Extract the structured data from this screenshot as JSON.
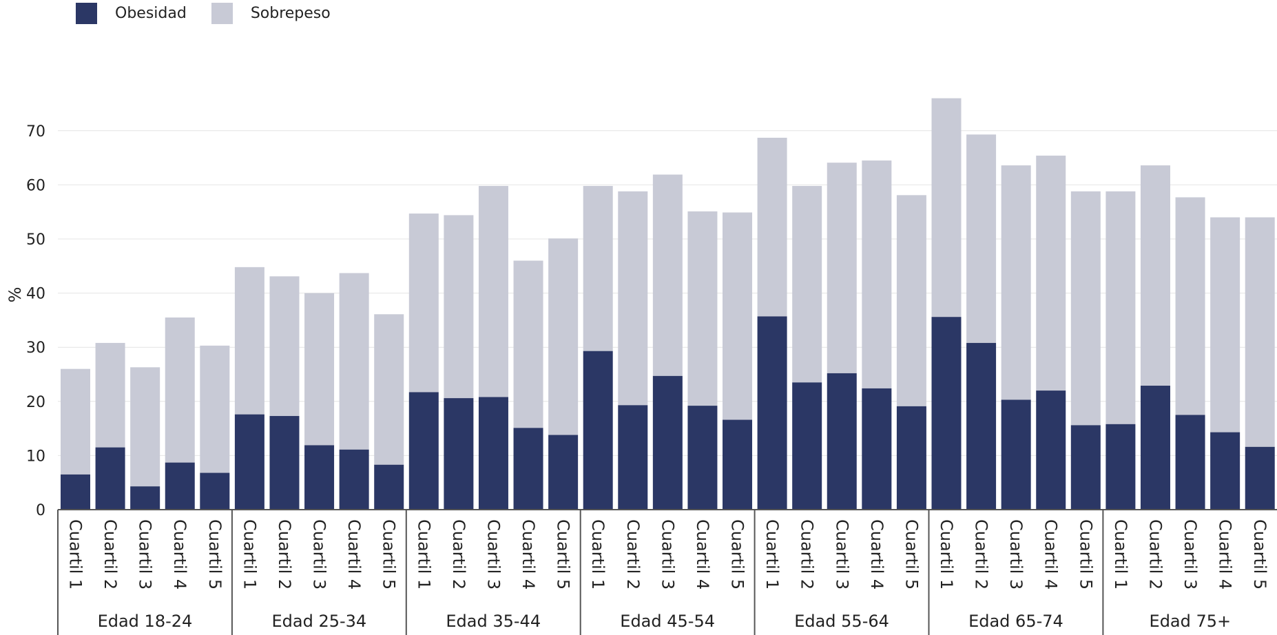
{
  "colors": {
    "obesidad": "#2b3765",
    "sobrepeso": "#c8cad6",
    "grid": "#e4e4e4",
    "axis": "#555555"
  },
  "legend": [
    {
      "label": "Obesidad",
      "color": "#2b3765"
    },
    {
      "label": "Sobrepeso",
      "color": "#c8cad6"
    }
  ],
  "chart_data": {
    "type": "bar",
    "stacked": true,
    "ylabel": "%",
    "ylim": [
      0,
      80
    ],
    "yticks": [
      0,
      10,
      20,
      30,
      40,
      50,
      60,
      70
    ],
    "grid": true,
    "legend_position": "top-left",
    "groups": [
      {
        "label": "Edad 18-24",
        "categories": [
          "Cuartil 1",
          "Cuartil 2",
          "Cuartil 3",
          "Cuartil 4",
          "Cuartil 5"
        ],
        "obesidad": [
          6.5,
          11.5,
          4.3,
          8.7,
          6.8
        ],
        "total": [
          26.0,
          30.8,
          26.3,
          35.5,
          30.3
        ]
      },
      {
        "label": "Edad 25-34",
        "categories": [
          "Cuartil 1",
          "Cuartil 2",
          "Cuartil 3",
          "Cuartil 4",
          "Cuartil 5"
        ],
        "obesidad": [
          17.6,
          17.3,
          11.9,
          11.1,
          8.3
        ],
        "total": [
          44.8,
          43.1,
          40.0,
          43.7,
          36.1
        ]
      },
      {
        "label": "Edad 35-44",
        "categories": [
          "Cuartil 1",
          "Cuartil 2",
          "Cuartil 3",
          "Cuartil 4",
          "Cuartil 5"
        ],
        "obesidad": [
          21.7,
          20.6,
          20.8,
          15.1,
          13.8
        ],
        "total": [
          54.7,
          54.4,
          59.8,
          46.0,
          50.1
        ]
      },
      {
        "label": "Edad 45-54",
        "categories": [
          "Cuartil 1",
          "Cuartil 2",
          "Cuartil 3",
          "Cuartil 4",
          "Cuartil 5"
        ],
        "obesidad": [
          29.3,
          19.3,
          24.7,
          19.2,
          16.6
        ],
        "total": [
          59.8,
          58.8,
          61.9,
          55.1,
          54.9
        ]
      },
      {
        "label": "Edad 55-64",
        "categories": [
          "Cuartil 1",
          "Cuartil 2",
          "Cuartil 3",
          "Cuartil 4",
          "Cuartil 5"
        ],
        "obesidad": [
          35.7,
          23.5,
          25.2,
          22.4,
          19.1
        ],
        "total": [
          68.7,
          59.8,
          64.1,
          64.5,
          58.1
        ]
      },
      {
        "label": "Edad 65-74",
        "categories": [
          "Cuartil 1",
          "Cuartil 2",
          "Cuartil 3",
          "Cuartil 4",
          "Cuartil 5"
        ],
        "obesidad": [
          35.6,
          30.8,
          20.3,
          22.0,
          15.6
        ],
        "total": [
          76.0,
          69.3,
          63.6,
          65.4,
          58.8
        ]
      },
      {
        "label": "Edad 75+",
        "categories": [
          "Cuartil 1",
          "Cuartil 2",
          "Cuartil 3",
          "Cuartil 4",
          "Cuartil 5"
        ],
        "obesidad": [
          15.8,
          22.9,
          17.5,
          14.3,
          11.6
        ],
        "total": [
          58.8,
          63.6,
          57.7,
          54.0,
          54.0
        ]
      }
    ]
  }
}
